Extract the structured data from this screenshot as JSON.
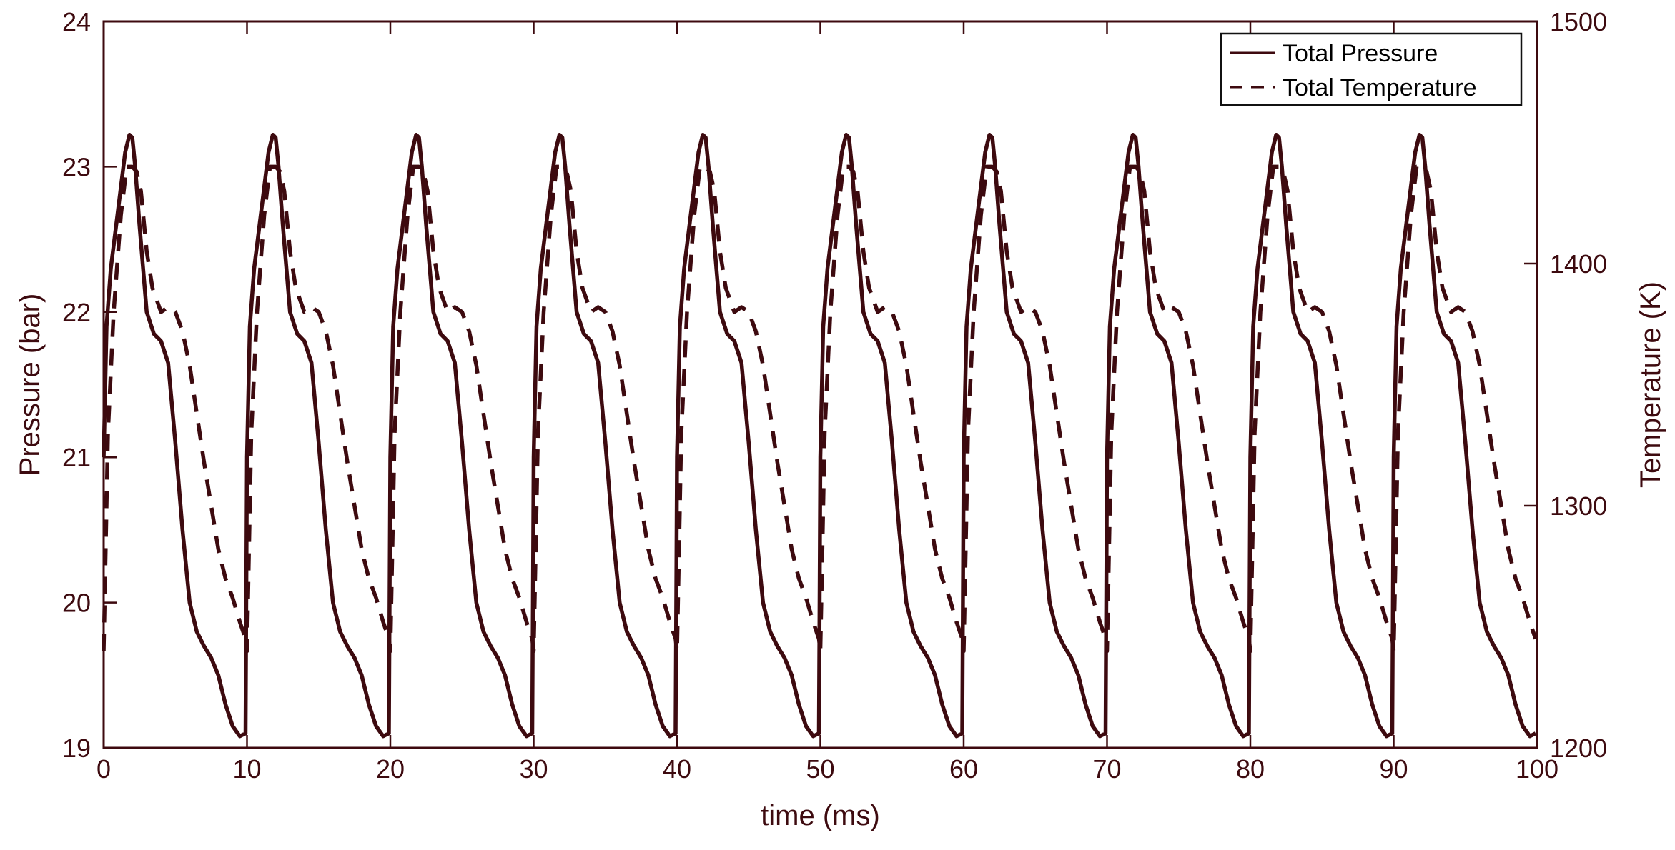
{
  "chart_data": {
    "type": "line",
    "title": "",
    "xlabel": "time (ms)",
    "ylabel_left": "Pressure (bar)",
    "ylabel_right": "Temperature (K)",
    "xlim": [
      0,
      100
    ],
    "ylim_left": [
      19,
      24
    ],
    "ylim_right": [
      1200,
      1500
    ],
    "x_ticks": [
      0,
      10,
      20,
      30,
      40,
      50,
      60,
      70,
      80,
      90,
      100
    ],
    "y_ticks_left": [
      19,
      20,
      21,
      22,
      23,
      24
    ],
    "y_ticks_right": [
      1200,
      1300,
      1400,
      1500
    ],
    "legend_position": "top-right",
    "grid": false,
    "period_ms": 10,
    "cycles": 10,
    "series": [
      {
        "name": "Total Pressure",
        "axis": "left",
        "line_style": "solid",
        "color": "#3d0a0f",
        "cycle_shape": {
          "t": [
            0.0,
            0.2,
            0.5,
            1.0,
            1.5,
            1.8,
            2.0,
            2.2,
            2.5,
            3.0,
            3.5,
            4.0,
            4.5,
            5.0,
            5.5,
            6.0,
            6.5,
            7.0,
            7.5,
            8.0,
            8.5,
            9.0,
            9.5,
            9.9
          ],
          "p": [
            21.0,
            21.9,
            22.3,
            22.7,
            23.1,
            23.22,
            23.2,
            23.0,
            22.6,
            22.0,
            21.85,
            21.8,
            21.65,
            21.1,
            20.5,
            20.0,
            19.8,
            19.7,
            19.62,
            19.5,
            19.3,
            19.15,
            19.08,
            19.1
          ]
        }
      },
      {
        "name": "Total Temperature",
        "axis": "right",
        "line_style": "dashed",
        "color": "#3d0a0f",
        "cycle_shape": {
          "t": [
            0.0,
            0.3,
            0.7,
            1.2,
            1.6,
            2.0,
            2.3,
            2.6,
            3.0,
            3.4,
            4.0,
            4.5,
            5.0,
            5.5,
            6.0,
            6.5,
            7.0,
            7.5,
            8.0,
            8.5,
            9.0,
            9.5,
            9.9
          ],
          "T": [
            1240,
            1330,
            1380,
            1420,
            1440,
            1440,
            1438,
            1430,
            1405,
            1390,
            1380,
            1382,
            1380,
            1372,
            1358,
            1338,
            1318,
            1300,
            1282,
            1270,
            1262,
            1252,
            1245
          ]
        }
      }
    ]
  },
  "axis_color": "#3d0a0f"
}
